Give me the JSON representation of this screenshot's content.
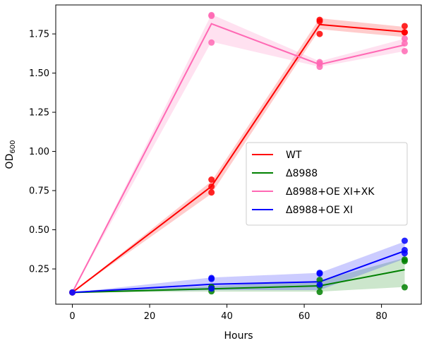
{
  "chart_data": {
    "type": "line",
    "xlabel": "Hours",
    "ylabel_main": "OD",
    "ylabel_sub": "600",
    "xlim": [
      -4.3,
      90.3
    ],
    "ylim": [
      0.025,
      1.935
    ],
    "xticks": [
      0,
      20,
      40,
      60,
      80
    ],
    "xtick_labels": [
      "0",
      "20",
      "40",
      "60",
      "80"
    ],
    "yticks": [
      0.25,
      0.5,
      0.75,
      1.0,
      1.25,
      1.5,
      1.75
    ],
    "ytick_labels": [
      "0.25",
      "0.50",
      "0.75",
      "1.00",
      "1.25",
      "1.50",
      "1.75"
    ],
    "grid": false,
    "legend_position": "center-right",
    "series": [
      {
        "name": "WT",
        "color": "#ff0000",
        "x": [
          0,
          36,
          64,
          86
        ],
        "mean": [
          0.1,
          0.777,
          1.81,
          1.763
        ],
        "band_low": [
          0.1,
          0.73,
          1.78,
          1.73
        ],
        "band_high": [
          0.1,
          0.81,
          1.85,
          1.795
        ],
        "points": [
          [
            0,
            0.1
          ],
          [
            36,
            0.82
          ],
          [
            36,
            0.776
          ],
          [
            36,
            0.738
          ],
          [
            64,
            1.84
          ],
          [
            64,
            1.83
          ],
          [
            64,
            1.75
          ],
          [
            86,
            1.8
          ],
          [
            86,
            1.76
          ],
          [
            86,
            1.76
          ]
        ]
      },
      {
        "name": "Δ8988",
        "color": "#008000",
        "x": [
          0,
          36,
          64,
          86
        ],
        "mean": [
          0.1,
          0.123,
          0.142,
          0.245
        ],
        "band_low": [
          0.1,
          0.105,
          0.105,
          0.135
        ],
        "band_high": [
          0.1,
          0.14,
          0.175,
          0.32
        ],
        "points": [
          [
            0,
            0.1
          ],
          [
            36,
            0.107
          ],
          [
            36,
            0.13
          ],
          [
            36,
            0.135
          ],
          [
            64,
            0.103
          ],
          [
            64,
            0.14
          ],
          [
            64,
            0.18
          ],
          [
            86,
            0.133
          ],
          [
            86,
            0.3
          ],
          [
            86,
            0.31
          ]
        ]
      },
      {
        "name": "Δ8988+OE XI+XK",
        "color": "#ff69b4",
        "x": [
          0,
          36,
          64,
          86
        ],
        "mean": [
          0.1,
          1.815,
          1.555,
          1.68
        ],
        "band_low": [
          0.1,
          1.7,
          1.54,
          1.64
        ],
        "band_high": [
          0.1,
          1.875,
          1.575,
          1.72
        ],
        "points": [
          [
            0,
            0.1
          ],
          [
            36,
            1.87
          ],
          [
            36,
            1.865
          ],
          [
            36,
            1.695
          ],
          [
            64,
            1.57
          ],
          [
            64,
            1.56
          ],
          [
            64,
            1.54
          ],
          [
            86,
            1.72
          ],
          [
            86,
            1.69
          ],
          [
            86,
            1.64
          ]
        ]
      },
      {
        "name": "Δ8988+OE XI",
        "color": "#0000ff",
        "x": [
          0,
          36,
          64,
          86
        ],
        "mean": [
          0.1,
          0.152,
          0.168,
          0.365
        ],
        "band_low": [
          0.1,
          0.115,
          0.115,
          0.315
        ],
        "band_high": [
          0.1,
          0.195,
          0.225,
          0.425
        ],
        "points": [
          [
            0,
            0.1
          ],
          [
            36,
            0.192
          ],
          [
            36,
            0.186
          ],
          [
            36,
            0.125
          ],
          [
            64,
            0.225
          ],
          [
            64,
            0.22
          ],
          [
            64,
            0.15
          ],
          [
            86,
            0.43
          ],
          [
            86,
            0.37
          ],
          [
            86,
            0.35
          ]
        ]
      }
    ]
  }
}
